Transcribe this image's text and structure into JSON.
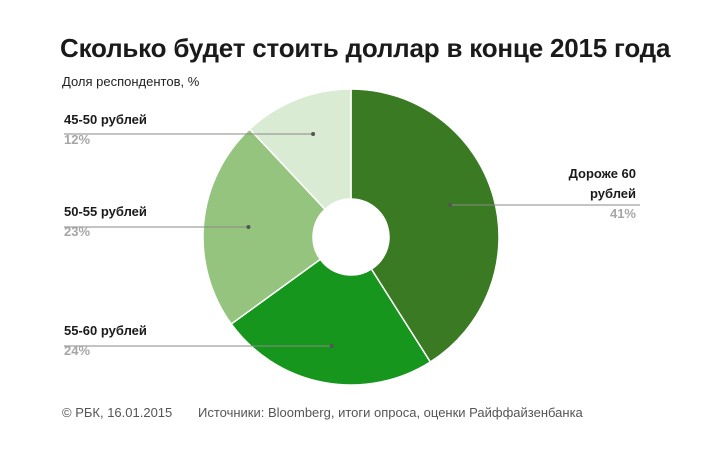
{
  "chart_data": {
    "type": "pie",
    "title": "Сколько будет стоить доллар в конце 2015 года",
    "subtitle": "Доля респондентов, %",
    "slices": [
      {
        "label": "Дороже 60 рублей",
        "label_lines": [
          "Дороже 60",
          "рублей"
        ],
        "value": 41,
        "value_label": "41%",
        "color": "#3a7a23",
        "side": "right"
      },
      {
        "label": "55-60 рублей",
        "label_lines": [
          "55-60 рублей"
        ],
        "value": 24,
        "value_label": "24%",
        "color": "#16961c",
        "side": "left"
      },
      {
        "label": "50-55 рублей",
        "label_lines": [
          "50-55 рублей"
        ],
        "value": 23,
        "value_label": "23%",
        "color": "#95c47f",
        "side": "left"
      },
      {
        "label": "45-50 рублей",
        "label_lines": [
          "45-50 рублей"
        ],
        "value": 12,
        "value_label": "12%",
        "color": "#d9ebd3",
        "side": "left"
      }
    ],
    "legend": "none"
  },
  "footer": {
    "copyright": "© РБК, 16.01.2015",
    "sources": "Источники: Bloomberg, итоги опроса, оценки Райффайзенбанка"
  }
}
